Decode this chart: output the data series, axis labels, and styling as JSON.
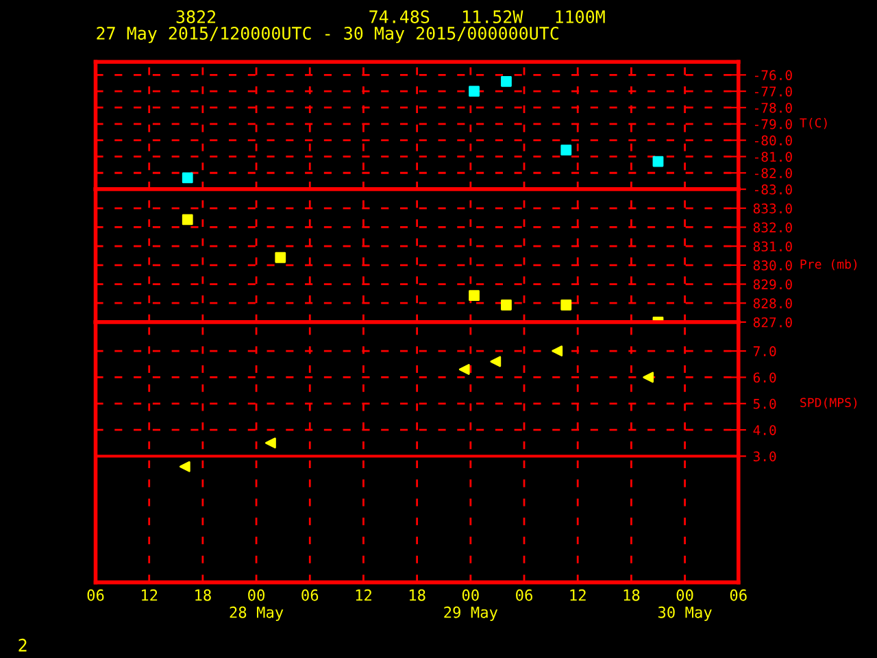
{
  "chart_data": [
    {
      "type": "scatter",
      "title": "3822",
      "subtitle": "27 May 2015/120000UTC - 30 May 2015/000000UTC",
      "annotations": [
        "74.48S   11.52W   1100M"
      ],
      "ylabel": "T(C)",
      "marker": "square",
      "grid": true,
      "tick_labels": "y",
      "x": [
        "2015-05-27T16:18",
        "2015-05-29T00:24",
        "2015-05-29T04:00",
        "2015-05-29T10:42",
        "2015-05-29T21:00"
      ],
      "series": [
        {
          "color": "#00ffff",
          "values": [
            -82.3,
            -77.0,
            -76.4,
            -80.6,
            -81.3
          ]
        }
      ],
      "xlim": [
        "2015-05-27T06:00",
        "2015-05-30T06:00"
      ],
      "ylim": [
        -83,
        -75.2
      ],
      "yticks": [
        {
          "value": -83,
          "label": "-83.0"
        },
        {
          "value": -82,
          "label": "-82.0"
        },
        {
          "value": -81,
          "label": "-81.0"
        },
        {
          "value": -80,
          "label": "-80.0"
        },
        {
          "value": -79,
          "label": "-79.0"
        },
        {
          "value": -78,
          "label": "-78.0"
        },
        {
          "value": -77,
          "label": "-77.0"
        },
        {
          "value": -76,
          "label": "-76.0"
        }
      ]
    },
    {
      "type": "scatter",
      "ylabel": "Pre (mb)",
      "marker": "square",
      "grid": true,
      "tick_labels": "y",
      "x": [
        "2015-05-27T16:18",
        "2015-05-28T02:42",
        "2015-05-29T00:24",
        "2015-05-29T04:00",
        "2015-05-29T10:42",
        "2015-05-29T21:00"
      ],
      "series": [
        {
          "color": "#ffff00",
          "values": [
            832.4,
            830.4,
            828.4,
            827.9,
            827.9,
            827.0
          ]
        }
      ],
      "xlim": [
        "2015-05-27T06:00",
        "2015-05-30T06:00"
      ],
      "ylim": [
        827,
        834
      ],
      "yticks": [
        {
          "value": 827,
          "label": "827.0"
        },
        {
          "value": 828,
          "label": "828.0"
        },
        {
          "value": 829,
          "label": "829.0"
        },
        {
          "value": 830,
          "label": "830.0"
        },
        {
          "value": 831,
          "label": "831.0"
        },
        {
          "value": 832,
          "label": "832.0"
        },
        {
          "value": 833,
          "label": "833.0"
        }
      ]
    },
    {
      "type": "scatter",
      "ylabel": "SPD(MPS)",
      "marker": "triangle",
      "grid": true,
      "annotations": [
        "2"
      ],
      "x": [
        "2015-05-27T16:00",
        "2015-05-28T01:36",
        "2015-05-28T23:18",
        "2015-05-29T02:48",
        "2015-05-29T09:42",
        "2015-05-29T19:54"
      ],
      "series": [
        {
          "color": "#ffff00",
          "values": [
            2.6,
            3.5,
            6.3,
            6.6,
            7.0,
            6.0
          ]
        }
      ],
      "ref_lines": [
        {
          "axis": "y",
          "value": 3,
          "color": "#ff0000"
        }
      ],
      "xlim": [
        "2015-05-27T06:00",
        "2015-05-30T06:00"
      ],
      "xticks": [
        {
          "value": "2015-05-27T06:00",
          "label": "06"
        },
        {
          "value": "2015-05-27T12:00",
          "label": "12"
        },
        {
          "value": "2015-05-27T18:00",
          "label": "18"
        },
        {
          "value": "2015-05-28T00:00",
          "label": "00\n28 May"
        },
        {
          "value": "2015-05-28T06:00",
          "label": "06"
        },
        {
          "value": "2015-05-28T12:00",
          "label": "12"
        },
        {
          "value": "2015-05-28T18:00",
          "label": "18"
        },
        {
          "value": "2015-05-29T00:00",
          "label": "00\n29 May"
        },
        {
          "value": "2015-05-29T06:00",
          "label": "06"
        },
        {
          "value": "2015-05-29T12:00",
          "label": "12"
        },
        {
          "value": "2015-05-29T18:00",
          "label": "18"
        },
        {
          "value": "2015-05-30T00:00",
          "label": "00\n30 May"
        },
        {
          "value": "2015-05-30T06:00",
          "label": "06"
        }
      ],
      "ylim": [
        -1.8,
        8.1
      ],
      "yticks": [
        {
          "value": 3,
          "label": "3.0"
        },
        {
          "value": 4,
          "label": "4.0"
        },
        {
          "value": 5,
          "label": "5.0"
        },
        {
          "value": 6,
          "label": "6.0"
        },
        {
          "value": 7,
          "label": "7.0"
        }
      ]
    }
  ]
}
